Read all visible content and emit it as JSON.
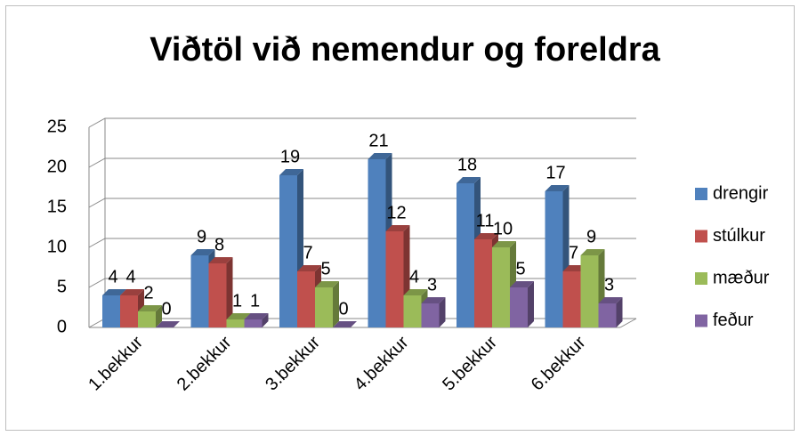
{
  "chart_data": {
    "type": "bar3d",
    "title": "Viðtöl við nemendur og foreldra",
    "categories": [
      "1.bekkur",
      "2.bekkur",
      "3.bekkur",
      "4.bekkur",
      "5.bekkur",
      "6.bekkur"
    ],
    "series": [
      {
        "name": "drengir",
        "color": "#4f81bd",
        "values": [
          4,
          9,
          19,
          21,
          18,
          17
        ]
      },
      {
        "name": "stúlkur",
        "color": "#c0504d",
        "values": [
          4,
          8,
          7,
          12,
          11,
          7
        ]
      },
      {
        "name": "mæður",
        "color": "#9bbb59",
        "values": [
          2,
          1,
          5,
          4,
          10,
          9
        ]
      },
      {
        "name": "feður",
        "color": "#8064a2",
        "values": [
          0,
          1,
          0,
          3,
          5,
          3
        ]
      }
    ],
    "ylim": [
      0,
      25
    ],
    "yticks": [
      0,
      5,
      10,
      15,
      20,
      25
    ],
    "grid": true,
    "legend": "right"
  }
}
